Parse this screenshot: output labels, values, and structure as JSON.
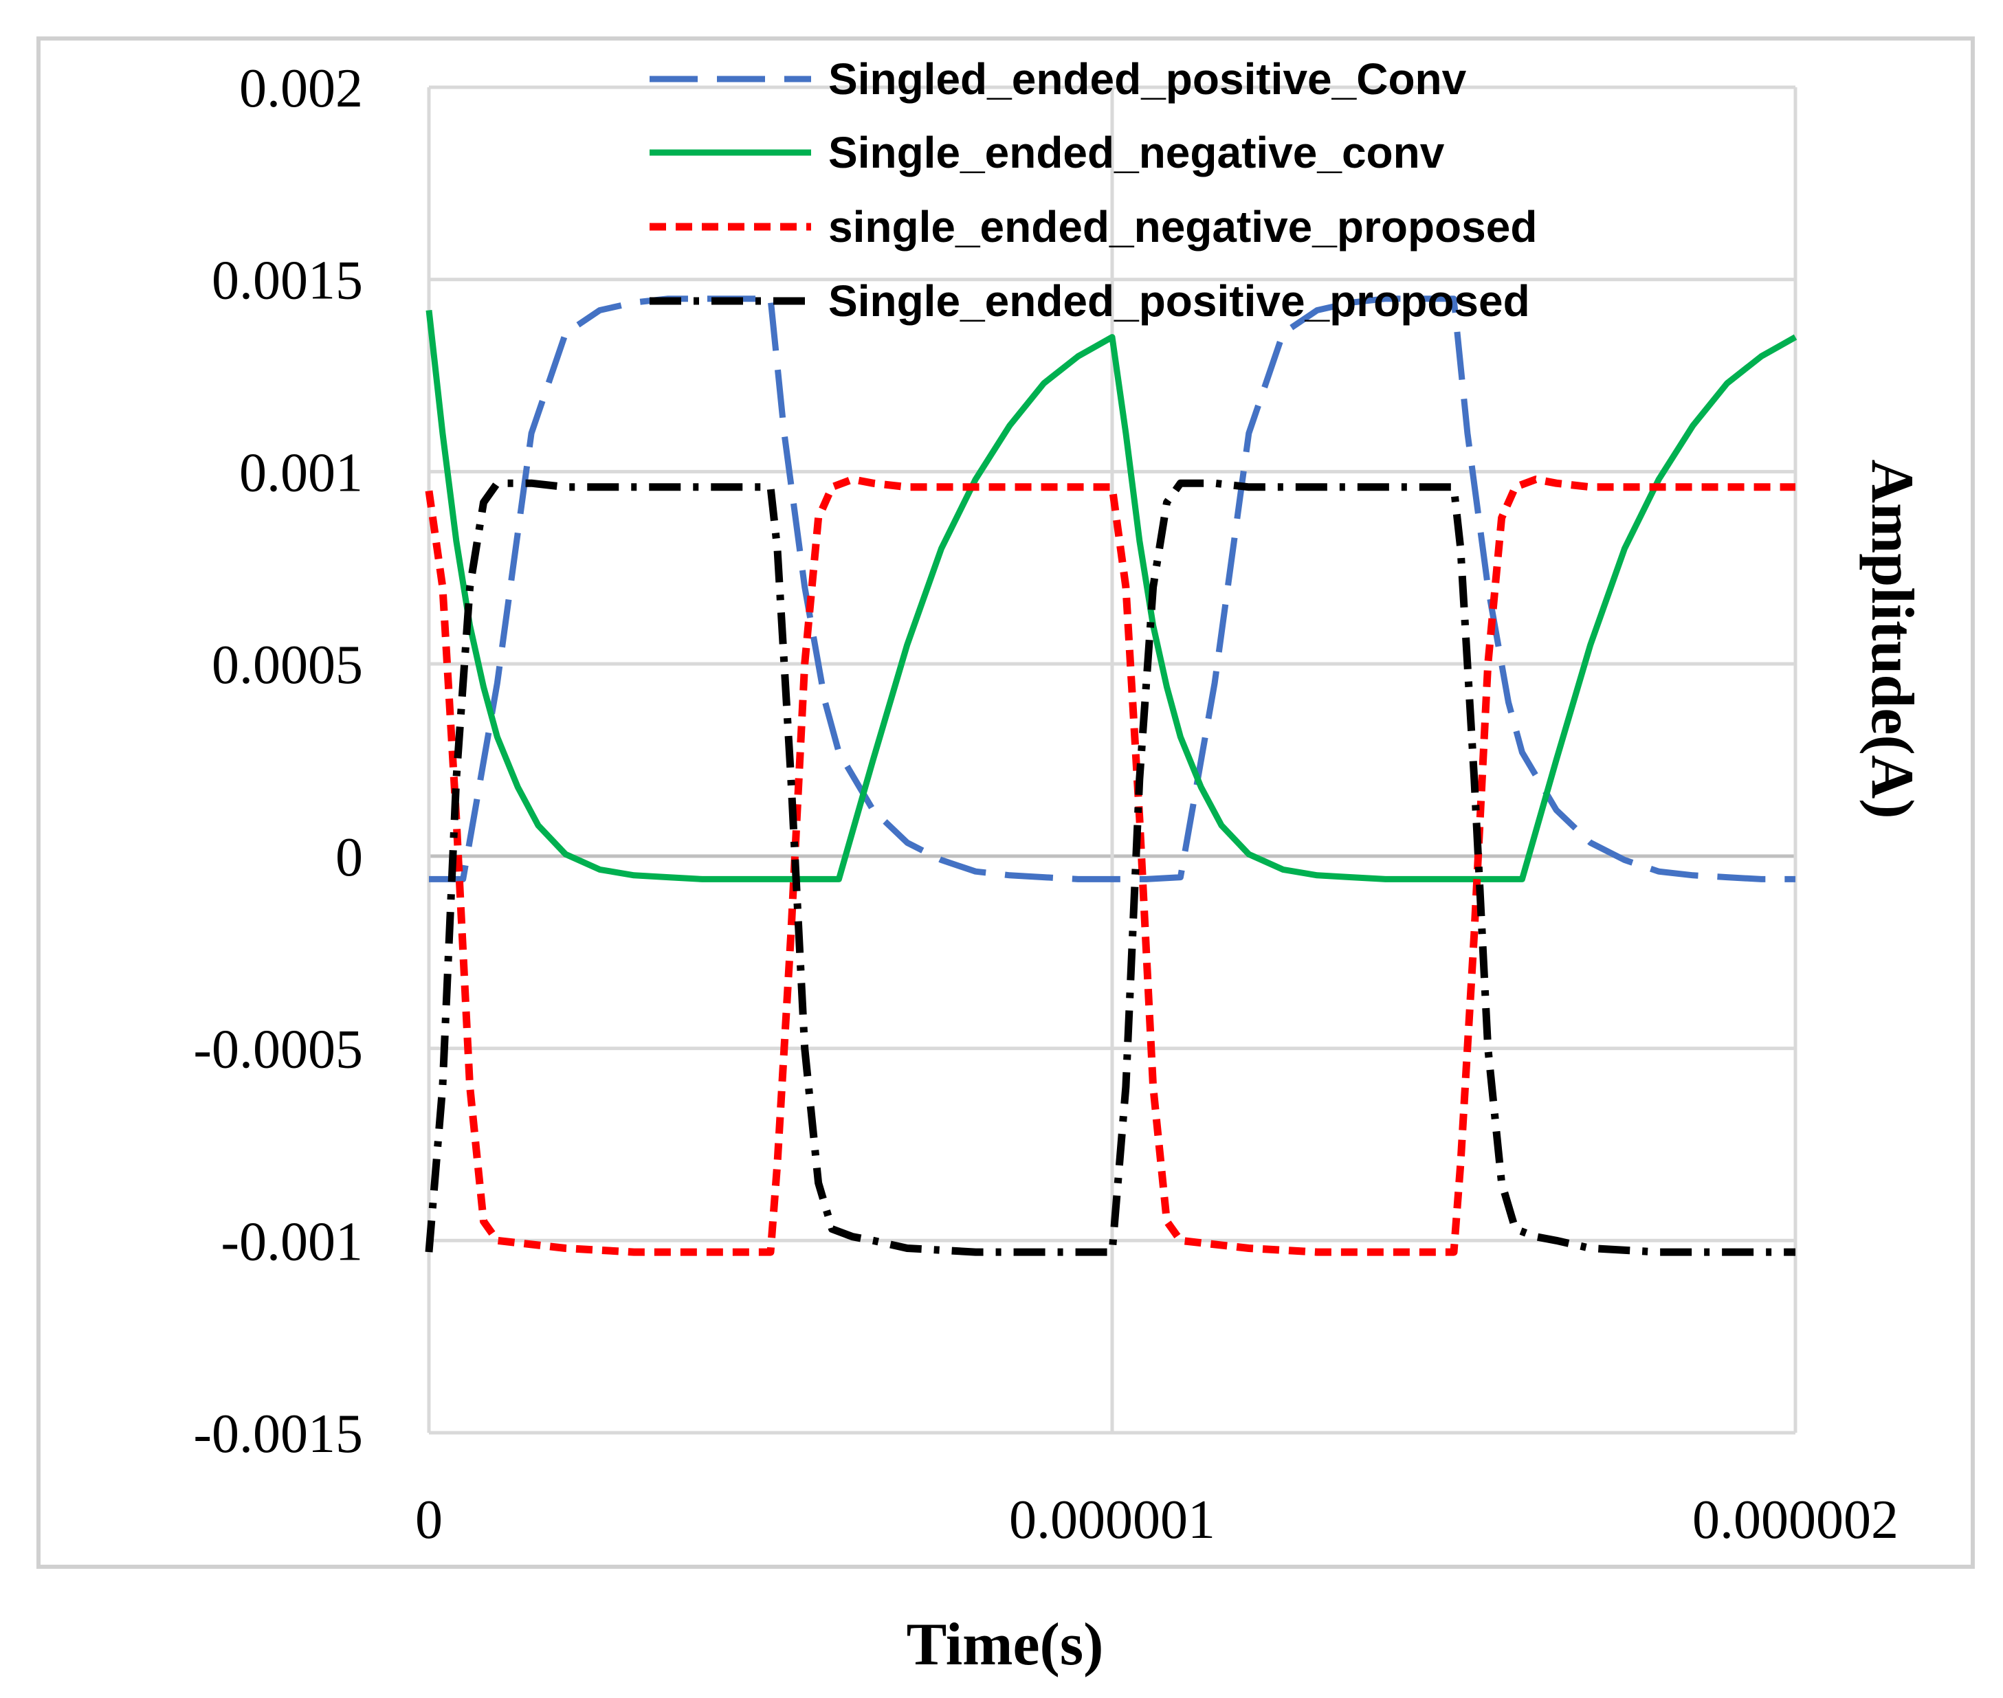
{
  "chart_data": {
    "type": "line",
    "title": "",
    "xlabel": "Time(s)",
    "ylabel": "Amplitude(A)",
    "xlim": [
      0,
      2e-06
    ],
    "ylim": [
      -0.0015,
      0.002
    ],
    "x_ticks": [
      "0",
      "0.000001",
      "0.000002"
    ],
    "y_ticks": [
      "0.002",
      "0.0015",
      "0.001",
      "0.0005",
      "0",
      "-0.0005",
      "-0.001",
      "-0.0015"
    ],
    "grid": true,
    "legend_position": "top-center",
    "series": [
      {
        "name": "Singled_ended_positive_Conv",
        "color": "#4472c4",
        "style": "long-dash",
        "x": [
          0,
          5e-08,
          1e-07,
          1.5e-07,
          2e-07,
          2.5e-07,
          3e-07,
          3.5e-07,
          4e-07,
          4.5e-07,
          5e-07,
          5.2e-07,
          5.5e-07,
          5.8e-07,
          6e-07,
          6.5e-07,
          7e-07,
          7.5e-07,
          8e-07,
          8.5e-07,
          9e-07,
          9.5e-07,
          1e-06,
          1.05e-06,
          1.1e-06,
          1.15e-06,
          1.2e-06,
          1.25e-06,
          1.3e-06,
          1.35e-06,
          1.4e-06,
          1.45e-06,
          1.5e-06,
          1.52e-06,
          1.55e-06,
          1.58e-06,
          1.6e-06,
          1.65e-06,
          1.7e-06,
          1.75e-06,
          1.8e-06,
          1.85e-06,
          1.9e-06,
          1.95e-06,
          2e-06
        ],
        "y": [
          -6e-05,
          -6e-05,
          0.00045,
          0.0011,
          0.00136,
          0.00142,
          0.00144,
          0.00145,
          0.00145,
          0.00145,
          0.00145,
          0.0011,
          0.0007,
          0.0004,
          0.00027,
          0.00012,
          3.5e-05,
          -1e-05,
          -4e-05,
          -5e-05,
          -5.5e-05,
          -6e-05,
          -6e-05,
          -6e-05,
          -5.5e-05,
          0.00045,
          0.0011,
          0.00136,
          0.00142,
          0.00144,
          0.00145,
          0.00145,
          0.00145,
          0.0011,
          0.0007,
          0.0004,
          0.00027,
          0.00012,
          3.5e-05,
          -1e-05,
          -4e-05,
          -5e-05,
          -5.5e-05,
          -6e-05,
          -6e-05
        ]
      },
      {
        "name": "Single_ended_negative_conv",
        "color": "#00b050",
        "style": "solid",
        "x": [
          0,
          2e-08,
          4e-08,
          6e-08,
          8e-08,
          1e-07,
          1.3e-07,
          1.6e-07,
          2e-07,
          2.5e-07,
          3e-07,
          3.5e-07,
          4e-07,
          4.5e-07,
          5e-07,
          5.5e-07,
          6e-07,
          6.5e-07,
          7e-07,
          7.5e-07,
          8e-07,
          8.5e-07,
          9e-07,
          9.5e-07,
          1e-06,
          1.02e-06,
          1.04e-06,
          1.06e-06,
          1.08e-06,
          1.1e-06,
          1.13e-06,
          1.16e-06,
          1.2e-06,
          1.25e-06,
          1.3e-06,
          1.35e-06,
          1.4e-06,
          1.45e-06,
          1.5e-06,
          1.55e-06,
          1.6e-06,
          1.65e-06,
          1.7e-06,
          1.75e-06,
          1.8e-06,
          1.85e-06,
          1.9e-06,
          1.95e-06,
          2e-06
        ],
        "y": [
          0.00142,
          0.0011,
          0.00082,
          0.0006,
          0.00044,
          0.00031,
          0.00018,
          8e-05,
          5e-06,
          -3.5e-05,
          -5e-05,
          -5.5e-05,
          -6e-05,
          -6e-05,
          -6e-05,
          -6e-05,
          -6e-05,
          0.00025,
          0.00055,
          0.0008,
          0.00098,
          0.00112,
          0.00123,
          0.0013,
          0.00135,
          0.0011,
          0.00082,
          0.0006,
          0.00044,
          0.00031,
          0.00018,
          8e-05,
          5e-06,
          -3.5e-05,
          -5e-05,
          -5.5e-05,
          -6e-05,
          -6e-05,
          -6e-05,
          -6e-05,
          -6e-05,
          0.00025,
          0.00055,
          0.0008,
          0.00098,
          0.00112,
          0.00123,
          0.0013,
          0.00135
        ]
      },
      {
        "name": "single_ended_negative_proposed",
        "color": "#ff0000",
        "style": "short-dash",
        "x": [
          0,
          2e-08,
          4e-08,
          6e-08,
          8e-08,
          1e-07,
          1.5e-07,
          2e-07,
          3e-07,
          4e-07,
          5e-07,
          5.1e-07,
          5.3e-07,
          5.5e-07,
          5.7e-07,
          5.9e-07,
          6.2e-07,
          6.5e-07,
          7e-07,
          8e-07,
          9e-07,
          1e-06,
          1.02e-06,
          1.04e-06,
          1.06e-06,
          1.08e-06,
          1.1e-06,
          1.15e-06,
          1.2e-06,
          1.3e-06,
          1.4e-06,
          1.5e-06,
          1.51e-06,
          1.53e-06,
          1.55e-06,
          1.57e-06,
          1.59e-06,
          1.62e-06,
          1.65e-06,
          1.7e-06,
          1.8e-06,
          1.9e-06,
          2e-06
        ],
        "y": [
          0.00095,
          0.0007,
          0.0001,
          -0.0006,
          -0.00095,
          -0.001,
          -0.00101,
          -0.00102,
          -0.00103,
          -0.00103,
          -0.00103,
          -0.0008,
          -0.0002,
          0.0005,
          0.00088,
          0.00096,
          0.00098,
          0.00097,
          0.00096,
          0.00096,
          0.00096,
          0.00096,
          0.0007,
          0.0001,
          -0.0006,
          -0.00095,
          -0.001,
          -0.00101,
          -0.00102,
          -0.00103,
          -0.00103,
          -0.00103,
          -0.0008,
          -0.0002,
          0.0005,
          0.00088,
          0.00096,
          0.00098,
          0.00097,
          0.00096,
          0.00096,
          0.00096,
          0.00096
        ]
      },
      {
        "name": "Single_ended_positive_proposed",
        "color": "#000000",
        "style": "dash-dot",
        "x": [
          0,
          2e-08,
          4e-08,
          6e-08,
          8e-08,
          1e-07,
          1.5e-07,
          2e-07,
          3e-07,
          4e-07,
          5e-07,
          5.1e-07,
          5.3e-07,
          5.5e-07,
          5.7e-07,
          5.9e-07,
          6.2e-07,
          6.5e-07,
          7e-07,
          8e-07,
          9e-07,
          1e-06,
          1.02e-06,
          1.04e-06,
          1.06e-06,
          1.08e-06,
          1.1e-06,
          1.15e-06,
          1.2e-06,
          1.3e-06,
          1.4e-06,
          1.5e-06,
          1.51e-06,
          1.53e-06,
          1.55e-06,
          1.57e-06,
          1.59e-06,
          1.62e-06,
          1.65e-06,
          1.7e-06,
          1.8e-06,
          1.9e-06,
          2e-06
        ],
        "y": [
          -0.00103,
          -0.0006,
          0.0002,
          0.0007,
          0.00092,
          0.00097,
          0.00097,
          0.00096,
          0.00096,
          0.00096,
          0.00096,
          0.0008,
          0.0002,
          -0.0005,
          -0.00085,
          -0.00097,
          -0.00099,
          -0.001,
          -0.00102,
          -0.00103,
          -0.00103,
          -0.00103,
          -0.0006,
          0.0002,
          0.0007,
          0.00092,
          0.00097,
          0.00097,
          0.00096,
          0.00096,
          0.00096,
          0.00096,
          0.0008,
          0.0002,
          -0.0005,
          -0.00085,
          -0.00097,
          -0.00099,
          -0.001,
          -0.00102,
          -0.00103,
          -0.00103,
          -0.00103
        ]
      }
    ]
  }
}
